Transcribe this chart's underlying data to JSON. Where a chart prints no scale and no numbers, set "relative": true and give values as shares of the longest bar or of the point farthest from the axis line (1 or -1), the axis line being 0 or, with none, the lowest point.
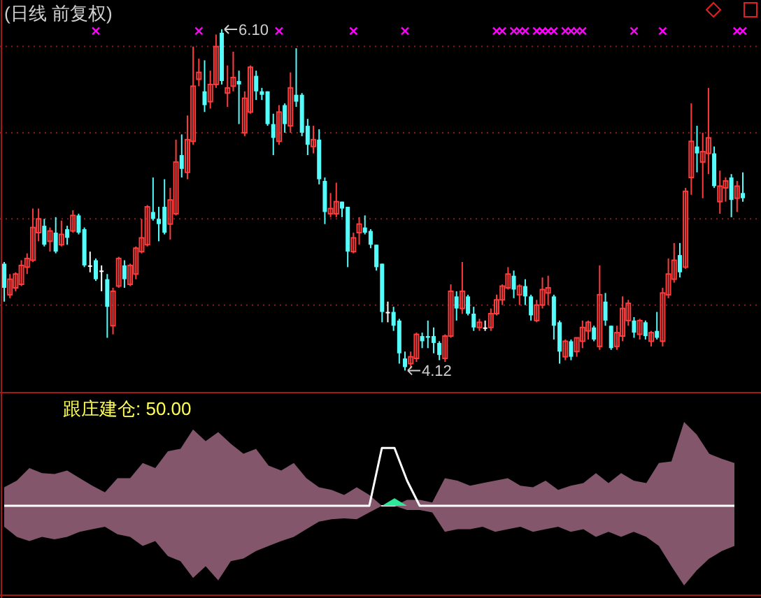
{
  "chart_data": [
    {
      "type": "candlestick",
      "title": "(日线 前复权)",
      "grid": "y",
      "ylim": [
        4.0,
        6.27
      ],
      "yticks": [
        {
          "value": 4.5,
          "label": null
        },
        {
          "value": 5.0,
          "label": null
        },
        {
          "value": 5.5,
          "label": null
        },
        {
          "value": 6.0,
          "label": null
        }
      ],
      "categories": [
        null,
        null,
        null,
        null,
        null,
        null,
        null,
        null,
        null,
        null,
        null,
        null,
        null,
        null,
        null,
        null,
        null,
        null,
        null,
        null,
        null,
        null,
        null,
        null,
        null,
        null,
        null,
        null,
        null,
        null,
        null,
        null,
        null,
        null,
        null,
        null,
        null,
        null,
        null,
        null,
        null,
        null,
        null,
        null,
        null,
        null,
        null,
        null,
        null,
        null,
        null,
        null,
        null,
        null,
        null,
        null,
        null,
        null,
        null,
        null,
        null,
        null,
        null,
        null,
        null,
        null,
        null,
        null,
        null,
        null,
        null,
        null,
        null,
        null,
        null,
        null,
        null,
        null,
        null,
        null,
        null,
        null,
        null,
        null,
        null,
        null,
        null,
        null,
        null,
        null,
        null,
        null,
        null,
        null,
        null,
        null,
        null,
        null,
        null,
        null,
        null,
        null,
        null,
        null,
        null,
        null,
        null,
        null,
        null,
        null,
        null,
        null,
        null,
        null,
        null,
        null,
        null,
        null,
        null,
        null,
        null,
        null,
        null,
        null,
        null,
        null,
        null,
        null,
        null,
        null
      ],
      "ohlc": [
        [
          4.74,
          4.75,
          4.52,
          4.6
        ],
        [
          4.56,
          4.68,
          4.54,
          4.65
        ],
        [
          4.6,
          4.69,
          4.58,
          4.68
        ],
        [
          4.62,
          4.76,
          4.61,
          4.73
        ],
        [
          4.72,
          4.8,
          4.68,
          4.77
        ],
        [
          4.76,
          5.06,
          4.75,
          4.95
        ],
        [
          4.92,
          5.06,
          4.87,
          5.0
        ],
        [
          4.96,
          5.0,
          4.84,
          4.85
        ],
        [
          4.87,
          4.95,
          4.81,
          4.93
        ],
        [
          4.92,
          5.01,
          4.8,
          4.81
        ],
        [
          4.85,
          4.99,
          4.84,
          4.91
        ],
        [
          4.94,
          4.96,
          4.85,
          4.89
        ],
        [
          4.93,
          5.05,
          4.92,
          5.02
        ],
        [
          5.02,
          5.03,
          4.91,
          4.92
        ],
        [
          4.94,
          4.95,
          4.72,
          4.73
        ],
        [
          4.73,
          4.81,
          4.69,
          4.73
        ],
        [
          4.76,
          4.77,
          4.64,
          4.65
        ],
        [
          4.7,
          4.73,
          4.58,
          4.7
        ],
        [
          4.65,
          4.68,
          4.31,
          4.49
        ],
        [
          4.38,
          4.6,
          4.33,
          4.58
        ],
        [
          4.61,
          4.78,
          4.6,
          4.77
        ],
        [
          4.73,
          4.76,
          4.6,
          4.65
        ],
        [
          4.62,
          4.74,
          4.61,
          4.73
        ],
        [
          4.68,
          4.84,
          4.65,
          4.83
        ],
        [
          4.81,
          5.0,
          4.8,
          4.89
        ],
        [
          4.85,
          5.08,
          4.84,
          5.07
        ],
        [
          5.04,
          5.24,
          4.99,
          5.0
        ],
        [
          5.0,
          5.07,
          4.87,
          4.97
        ],
        [
          5.07,
          5.23,
          4.91,
          4.92
        ],
        [
          4.97,
          5.18,
          4.88,
          5.11
        ],
        [
          5.03,
          5.46,
          5.02,
          5.33
        ],
        [
          5.37,
          5.49,
          5.24,
          5.29
        ],
        [
          5.27,
          5.6,
          5.23,
          5.46
        ],
        [
          5.45,
          6.0,
          5.43,
          5.77
        ],
        [
          5.81,
          5.93,
          5.77,
          5.85
        ],
        [
          5.74,
          5.92,
          5.62,
          5.66
        ],
        [
          5.68,
          5.86,
          5.64,
          5.78
        ],
        [
          5.78,
          6.07,
          5.76,
          6.0
        ],
        [
          6.08,
          6.1,
          5.78,
          5.8
        ],
        [
          5.73,
          5.89,
          5.65,
          5.76
        ],
        [
          5.77,
          5.97,
          5.74,
          5.82
        ],
        [
          5.8,
          5.86,
          5.55,
          5.78
        ],
        [
          5.5,
          5.74,
          5.48,
          5.7
        ],
        [
          5.62,
          5.89,
          5.61,
          5.88
        ],
        [
          5.83,
          5.86,
          5.69,
          5.74
        ],
        [
          5.74,
          5.76,
          5.69,
          5.72
        ],
        [
          5.74,
          5.74,
          5.54,
          5.55
        ],
        [
          5.55,
          5.61,
          5.37,
          5.47
        ],
        [
          5.45,
          5.66,
          5.43,
          5.62
        ],
        [
          5.66,
          5.67,
          5.5,
          5.55
        ],
        [
          5.54,
          5.85,
          5.5,
          5.76
        ],
        [
          5.72,
          5.99,
          5.65,
          5.68
        ],
        [
          5.72,
          5.73,
          5.48,
          5.5
        ],
        [
          5.54,
          5.58,
          5.37,
          5.43
        ],
        [
          5.42,
          5.54,
          5.38,
          5.46
        ],
        [
          5.46,
          5.52,
          5.2,
          5.23
        ],
        [
          5.22,
          5.24,
          4.97,
          5.04
        ],
        [
          5.03,
          5.15,
          5.01,
          5.06
        ],
        [
          5.03,
          5.21,
          5.01,
          5.1
        ],
        [
          5.1,
          5.1,
          5.01,
          5.06
        ],
        [
          5.07,
          5.07,
          4.72,
          4.81
        ],
        [
          4.81,
          4.92,
          4.8,
          4.89
        ],
        [
          4.92,
          5.01,
          4.85,
          4.97
        ],
        [
          4.95,
          5.02,
          4.91,
          4.92
        ],
        [
          4.93,
          4.94,
          4.83,
          4.85
        ],
        [
          4.85,
          4.85,
          4.7,
          4.72
        ],
        [
          4.74,
          4.74,
          4.4,
          4.46
        ],
        [
          4.46,
          4.52,
          4.4,
          4.46
        ],
        [
          4.46,
          4.49,
          4.35,
          4.38
        ],
        [
          4.41,
          4.42,
          4.16,
          4.22
        ],
        [
          4.19,
          4.23,
          4.12,
          4.14
        ],
        [
          4.16,
          4.23,
          4.13,
          4.2
        ],
        [
          4.19,
          4.34,
          4.17,
          4.33
        ],
        [
          4.32,
          4.34,
          4.25,
          4.29
        ],
        [
          4.32,
          4.41,
          4.25,
          4.31
        ],
        [
          4.32,
          4.37,
          4.22,
          4.28
        ],
        [
          4.28,
          4.29,
          4.18,
          4.21
        ],
        [
          4.19,
          4.33,
          4.17,
          4.32
        ],
        [
          4.32,
          4.62,
          4.31,
          4.58
        ],
        [
          4.55,
          4.58,
          4.41,
          4.48
        ],
        [
          4.48,
          4.75,
          4.45,
          4.58
        ],
        [
          4.55,
          4.56,
          4.44,
          4.45
        ],
        [
          4.45,
          4.49,
          4.35,
          4.37
        ],
        [
          4.37,
          4.42,
          4.35,
          4.4
        ],
        [
          4.37,
          4.41,
          4.35,
          4.37
        ],
        [
          4.37,
          4.48,
          4.35,
          4.45
        ],
        [
          4.45,
          4.56,
          4.44,
          4.53
        ],
        [
          4.53,
          4.62,
          4.5,
          4.61
        ],
        [
          4.6,
          4.72,
          4.59,
          4.68
        ],
        [
          4.67,
          4.7,
          4.54,
          4.59
        ],
        [
          4.56,
          4.62,
          4.5,
          4.61
        ],
        [
          4.61,
          4.65,
          4.5,
          4.55
        ],
        [
          4.55,
          4.56,
          4.41,
          4.44
        ],
        [
          4.41,
          4.53,
          4.4,
          4.5
        ],
        [
          4.5,
          4.66,
          4.48,
          4.59
        ],
        [
          4.57,
          4.67,
          4.5,
          4.6
        ],
        [
          4.55,
          4.56,
          4.3,
          4.38
        ],
        [
          4.4,
          4.41,
          4.16,
          4.23
        ],
        [
          4.2,
          4.3,
          4.18,
          4.29
        ],
        [
          4.29,
          4.3,
          4.18,
          4.2
        ],
        [
          4.23,
          4.31,
          4.2,
          4.31
        ],
        [
          4.29,
          4.41,
          4.25,
          4.37
        ],
        [
          4.35,
          4.41,
          4.3,
          4.4
        ],
        [
          4.37,
          4.38,
          4.29,
          4.3
        ],
        [
          4.26,
          4.73,
          4.24,
          4.56
        ],
        [
          4.52,
          4.57,
          4.38,
          4.41
        ],
        [
          4.38,
          4.38,
          4.24,
          4.25
        ],
        [
          4.26,
          4.38,
          4.24,
          4.34
        ],
        [
          4.32,
          4.55,
          4.29,
          4.48
        ],
        [
          4.41,
          4.53,
          4.38,
          4.51
        ],
        [
          4.41,
          4.43,
          4.31,
          4.34
        ],
        [
          4.33,
          4.42,
          4.3,
          4.41
        ],
        [
          4.4,
          4.41,
          4.3,
          4.32
        ],
        [
          4.29,
          4.35,
          4.26,
          4.34
        ],
        [
          4.35,
          4.46,
          4.3,
          4.31
        ],
        [
          4.29,
          4.6,
          4.26,
          4.57
        ],
        [
          4.56,
          4.77,
          4.54,
          4.68
        ],
        [
          4.65,
          4.86,
          4.63,
          4.76
        ],
        [
          4.79,
          4.86,
          4.66,
          4.69
        ],
        [
          4.72,
          5.18,
          4.71,
          5.16
        ],
        [
          5.24,
          5.67,
          5.14,
          5.45
        ],
        [
          5.42,
          5.54,
          5.27,
          5.38
        ],
        [
          5.33,
          5.5,
          5.12,
          5.39
        ],
        [
          5.38,
          5.76,
          5.26,
          5.47
        ],
        [
          5.38,
          5.42,
          5.18,
          5.19
        ],
        [
          5.1,
          5.28,
          5.03,
          5.19
        ],
        [
          5.18,
          5.24,
          5.1,
          5.22
        ],
        [
          5.24,
          5.26,
          5.01,
          5.11
        ],
        [
          5.12,
          5.22,
          5.04,
          5.19
        ],
        [
          5.15,
          5.27,
          5.1,
          5.12
        ]
      ],
      "series": [
        {
          "type": "scatter",
          "color": "#ff00ff",
          "marker": "cross",
          "values": [
            null,
            null,
            null,
            null,
            null,
            null,
            null,
            null,
            null,
            null,
            null,
            null,
            null,
            null,
            null,
            null,
            6.09,
            null,
            null,
            null,
            null,
            null,
            null,
            null,
            null,
            null,
            null,
            null,
            null,
            null,
            null,
            null,
            null,
            null,
            6.09,
            null,
            null,
            null,
            null,
            null,
            null,
            null,
            null,
            null,
            null,
            null,
            null,
            null,
            6.09,
            null,
            null,
            null,
            null,
            null,
            null,
            null,
            null,
            null,
            null,
            null,
            null,
            6.09,
            null,
            null,
            null,
            null,
            null,
            null,
            null,
            null,
            6.09,
            null,
            null,
            null,
            null,
            null,
            null,
            null,
            null,
            null,
            null,
            null,
            null,
            null,
            null,
            null,
            6.09,
            6.09,
            null,
            6.09,
            6.09,
            6.09,
            null,
            6.09,
            6.09,
            6.09,
            6.09,
            null,
            6.09,
            6.09,
            6.09,
            6.09,
            null,
            null,
            null,
            null,
            null,
            null,
            null,
            null,
            6.09,
            null,
            null,
            null,
            null,
            6.09,
            null,
            null,
            null,
            null,
            null,
            null,
            null,
            null,
            null,
            null,
            null,
            null,
            6.09,
            6.09
          ]
        }
      ],
      "annotations": [
        "6.10",
        "4.12"
      ]
    },
    {
      "type": "area",
      "title": "跟庄建仓: 50.00",
      "relative": true,
      "categories": [
        null,
        null,
        null,
        null,
        null,
        null,
        null,
        null,
        null,
        null,
        null,
        null,
        null,
        null,
        null,
        null,
        null,
        null,
        null,
        null,
        null,
        null,
        null,
        null,
        null,
        null,
        null,
        null,
        null,
        null,
        null,
        null,
        null,
        null,
        null,
        null,
        null,
        null,
        null,
        null,
        null,
        null,
        null,
        null,
        null,
        null,
        null,
        null,
        null,
        null,
        null,
        null,
        null,
        null,
        null,
        null,
        null,
        null,
        null
      ],
      "series": [
        {
          "type": "area",
          "color": "#83566b",
          "values": [
            0.22,
            0.3,
            0.45,
            0.39,
            0.38,
            0.42,
            0.33,
            0.24,
            0.16,
            0.33,
            0.33,
            0.51,
            0.45,
            0.65,
            0.68,
            0.91,
            0.77,
            0.88,
            0.74,
            0.62,
            0.68,
            0.48,
            0.42,
            0.51,
            0.33,
            0.22,
            0.19,
            0.13,
            0.22,
            0.13,
            0,
            0,
            0.07,
            0.07,
            0.04,
            0.33,
            0.3,
            0.24,
            0.27,
            0.3,
            0.33,
            0.24,
            0.22,
            0.3,
            0.19,
            0.24,
            0.27,
            0.39,
            0.27,
            0.39,
            0.3,
            0.27,
            0.51,
            0.53,
            1,
            0.85,
            0.62,
            0.56,
            0.51
          ]
        },
        {
          "type": "area",
          "color": "#83566b",
          "values": [
            -0.25,
            -0.37,
            -0.42,
            -0.37,
            -0.4,
            -0.37,
            -0.31,
            -0.28,
            -0.25,
            -0.34,
            -0.37,
            -0.48,
            -0.42,
            -0.6,
            -0.66,
            -0.86,
            -0.72,
            -0.89,
            -0.66,
            -0.63,
            -0.54,
            -0.48,
            -0.42,
            -0.37,
            -0.28,
            -0.19,
            -0.16,
            -0.15,
            -0.16,
            -0.08,
            0,
            0,
            -0.05,
            -0.05,
            -0.08,
            -0.31,
            -0.28,
            -0.28,
            -0.25,
            -0.31,
            -0.28,
            -0.25,
            -0.31,
            -0.28,
            -0.25,
            -0.31,
            -0.28,
            -0.37,
            -0.31,
            -0.37,
            -0.31,
            -0.37,
            -0.48,
            -0.72,
            -0.95,
            -0.77,
            -0.63,
            -0.54,
            -0.48
          ]
        },
        {
          "type": "area",
          "color": "#2ee89a",
          "values": [
            null,
            null,
            null,
            null,
            null,
            null,
            null,
            null,
            null,
            null,
            null,
            null,
            null,
            null,
            null,
            null,
            null,
            null,
            null,
            null,
            null,
            null,
            null,
            null,
            null,
            null,
            null,
            null,
            null,
            null,
            0,
            0.09,
            0,
            null,
            null,
            null,
            null,
            null,
            null,
            null,
            null,
            null,
            null,
            null,
            null,
            null,
            null,
            null,
            null,
            null,
            null,
            null,
            null,
            null,
            null,
            null,
            null,
            null,
            null
          ]
        },
        {
          "type": "line",
          "color": "#ffffff",
          "values": [
            0,
            0,
            0,
            0,
            0,
            0,
            0,
            0,
            0,
            0,
            0,
            0,
            0,
            0,
            0,
            0,
            0,
            0,
            0,
            0,
            0,
            0,
            0,
            0,
            0,
            0,
            0,
            0,
            0,
            0,
            0.69,
            0.69,
            0.3,
            0,
            0,
            0,
            0,
            0,
            0,
            0,
            0,
            0,
            0,
            0,
            0,
            0,
            0,
            0,
            0,
            0,
            0,
            0,
            0,
            0,
            0,
            0,
            0,
            0,
            0
          ]
        }
      ]
    }
  ]
}
